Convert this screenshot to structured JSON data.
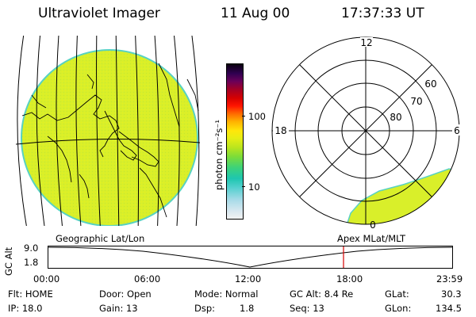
{
  "header": {
    "title": "Ultraviolet Imager",
    "date": "11 Aug 00",
    "time": "17:37:33 UT"
  },
  "colorbar": {
    "unit_label": "photon cm⁻²s⁻¹",
    "tick_labels": [
      "100",
      "10"
    ],
    "colors": [
      "#f2f2f2",
      "#d8e8f0",
      "#a9dbe8",
      "#55d0cf",
      "#1ec6b0",
      "#3cd27a",
      "#7bdc3a",
      "#b9e51e",
      "#e6ee14",
      "#ffe60a",
      "#ffb000",
      "#ff6a00",
      "#ff1500",
      "#d60000",
      "#a00028",
      "#6a005a",
      "#300050",
      "#0a0010"
    ]
  },
  "geo_panel": {
    "label": "Geographic Lat/Lon",
    "fill_color": "#d9ef2a",
    "edge_color": "#58d2c2"
  },
  "polar_panel": {
    "label": "Apex  MLat/MLT",
    "mlt_labels": [
      "12",
      "18",
      "6",
      "0"
    ],
    "lat_labels": [
      "60",
      "70",
      "80"
    ],
    "oval_fill": "#d9ef2a"
  },
  "altitude_plot": {
    "y_axis_label": "GC Alt",
    "y_ticks": [
      "9.0",
      "1.8"
    ],
    "x_ticks": [
      "00:00",
      "06:00",
      "12:00",
      "18:00",
      "23:59"
    ],
    "marker_color": "#d40000"
  },
  "info": {
    "flt": "Flt: HOME",
    "ip": "IP: 18.0",
    "door": "Door: Open",
    "gain": "Gain: 13",
    "mode": "Mode: Normal",
    "dsp_label": "Dsp:",
    "dsp_value": "1.8",
    "gc_alt": "GC Alt: 8.4 Re",
    "seq": "Seq: 13",
    "glat_label": "GLat:",
    "glat_value": "30.3",
    "glon_label": "GLon:",
    "glon_value": "134.5"
  }
}
